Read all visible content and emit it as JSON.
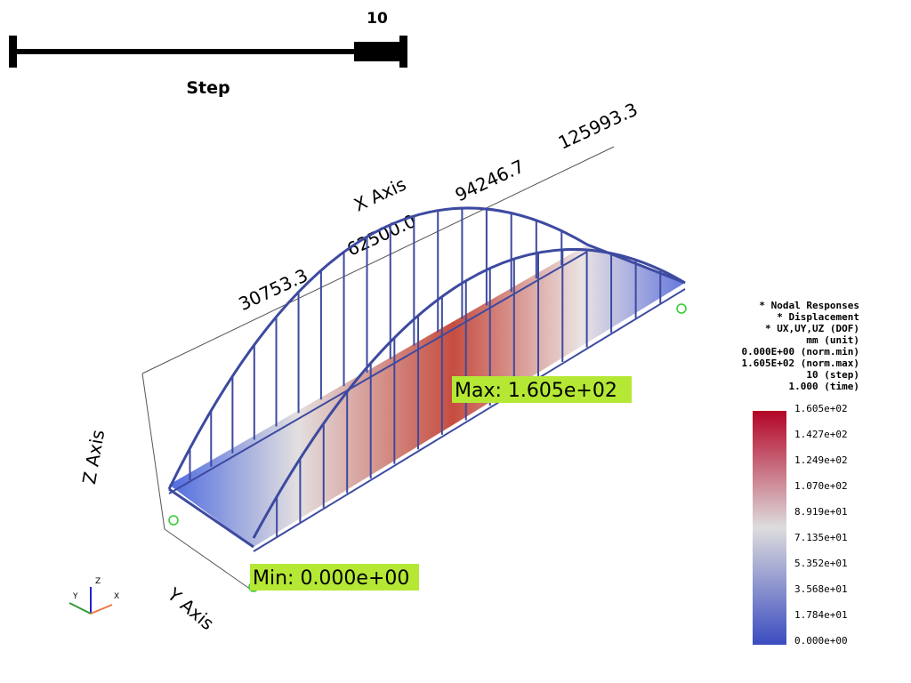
{
  "slider": {
    "value": "10",
    "title": "Step"
  },
  "axes": {
    "x_title": "X Axis",
    "y_title": "Y Axis",
    "z_title": "Z Axis",
    "x_ticks": [
      "30753.3",
      "62500.0",
      "94246.7",
      "125993.3"
    ]
  },
  "annotations": {
    "max": "Max:  1.605e+02",
    "min": "Min:  0.000e+00"
  },
  "info": [
    "* Nodal Responses",
    "* Displacement",
    "* UX,UY,UZ (DOF)",
    "mm (unit)",
    "0.000E+00 (norm.min)",
    "1.605E+02 (norm.max)",
    "10 (step)",
    "1.000 (time)"
  ],
  "colorbar": {
    "labels": [
      "1.605e+02",
      "1.427e+02",
      "1.249e+02",
      "1.070e+02",
      "8.919e+01",
      "7.135e+01",
      "5.352e+01",
      "3.568e+01",
      "1.784e+01",
      "0.000e+00"
    ]
  },
  "orientation": {
    "x": "X",
    "y": "Y",
    "z": "Z"
  }
}
